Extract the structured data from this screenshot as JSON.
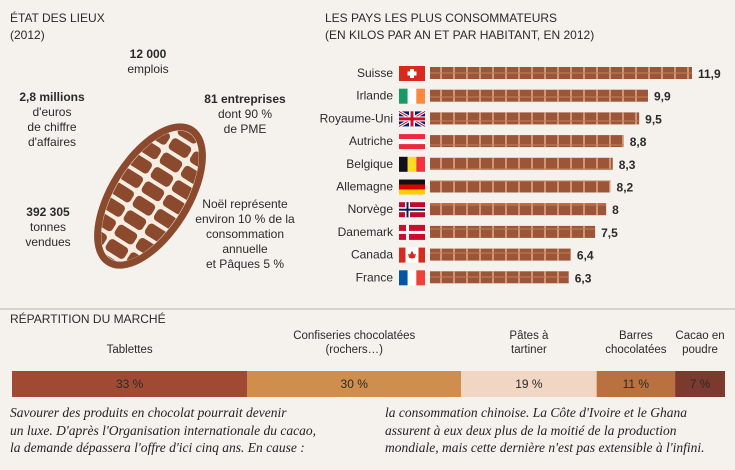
{
  "left_panel": {
    "title": "ÉTAT DES LIEUX",
    "subtitle": "(2012)",
    "stats": [
      [
        "12 000",
        "emplois"
      ],
      [
        "2,8 millions",
        "d'euros",
        "de chiffre",
        "d'affaires"
      ],
      [
        "81 entreprises",
        "dont 90 %",
        "de PME"
      ],
      [
        "392 305",
        "tonnes",
        "vendues"
      ],
      [
        "Noël représente",
        "environ 10 % de la",
        "consommation",
        "annuelle",
        "et Pâques 5 %"
      ]
    ]
  },
  "chart_data": [
    {
      "type": "hbar",
      "title": "LES PAYS LES PLUS CONSOMMATEURS",
      "subtitle": "(EN KILOS PAR AN ET PAR HABITANT, EN 2012)",
      "categories": [
        "Suisse",
        "Irlande",
        "Royaume-Uni",
        "Autriche",
        "Belgique",
        "Allemagne",
        "Norvège",
        "Danemark",
        "Canada",
        "France"
      ],
      "values": [
        11.9,
        9.9,
        9.5,
        8.8,
        8.3,
        8.2,
        8,
        7.5,
        6.4,
        6.3
      ],
      "value_labels": [
        "11,9",
        "9,9",
        "9,5",
        "8,8",
        "8,3",
        "8,2",
        "8",
        "7,5",
        "6,4",
        "6,3"
      ],
      "color": "#9c5538"
    },
    {
      "type": "stacked",
      "title": "RÉPARTITION DU MARCHÉ",
      "categories": [
        "Tablettes",
        "Confiseries chocolatées (rochers…)",
        "Pâtes à tartiner",
        "Barres chocolatées",
        "Cacao en poudre"
      ],
      "values": [
        33,
        30,
        19,
        11,
        7
      ],
      "value_labels": [
        "33 %",
        "30 %",
        "19 %",
        "11 %",
        "7 %"
      ],
      "colors": [
        "#a04a33",
        "#cf8e4e",
        "#f1d6c4",
        "#b9713f",
        "#7b3a2d"
      ]
    }
  ],
  "caption": {
    "left": [
      "Savourer des produits en chocolat pourrait devenir",
      "un luxe. D'après l'Organisation internationale du cacao,",
      "la demande dépassera l'offre d'ici cinq ans. En cause :"
    ],
    "right": [
      "la consommation chinoise. La Côte d'Ivoire et le Ghana",
      "assurent à eux deux plus de la moitié de la production",
      "mondiale, mais cette dernière n'est pas extensible à l'infini."
    ]
  }
}
